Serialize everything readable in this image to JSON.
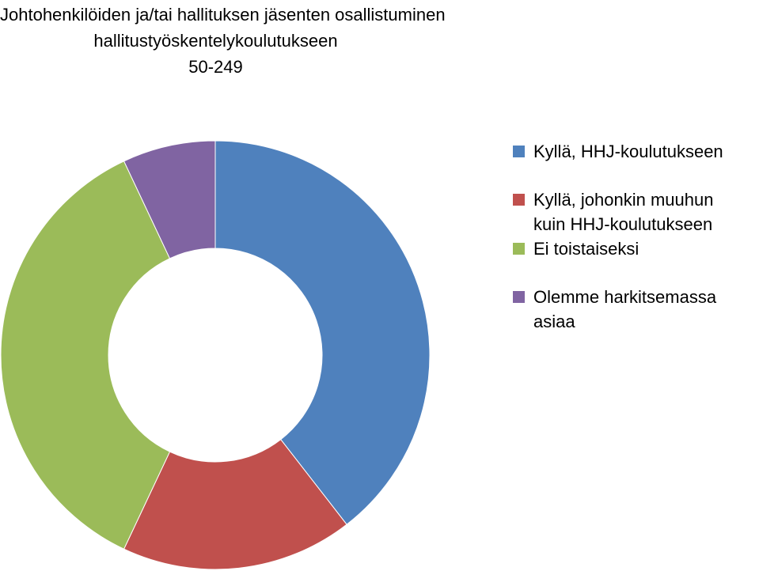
{
  "chart_data": {
    "type": "pie",
    "donut": true,
    "title_lines": [
      "Johtohenkilöiden ja/tai hallituksen jäsenten osallistuminen",
      "hallitustyöskentelykoulutukseen",
      "50-249"
    ],
    "legend_position": "right",
    "series": [
      {
        "name_lines": [
          "Kyllä, HHJ-koulutukseen"
        ],
        "value": 39.5,
        "color": "#4F81BD"
      },
      {
        "name_lines": [
          "Kyllä, johonkin muuhun",
          "kuin HHJ-koulutukseen"
        ],
        "value": 17.5,
        "color": "#C0504D"
      },
      {
        "name_lines": [
          "Ei toistaiseksi"
        ],
        "value": 36,
        "color": "#9BBB59"
      },
      {
        "name_lines": [
          "Olemme harkitsemassa",
          "asiaa"
        ],
        "value": 7,
        "color": "#8064A2"
      }
    ]
  }
}
